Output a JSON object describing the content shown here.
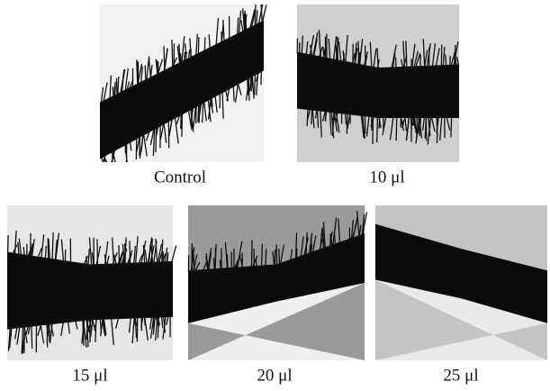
{
  "panels": [
    {
      "label": "Control"
    },
    {
      "label": "10 μl"
    },
    {
      "label": "15 μl"
    },
    {
      "label": "20 μl"
    },
    {
      "label": "25 μl"
    }
  ]
}
